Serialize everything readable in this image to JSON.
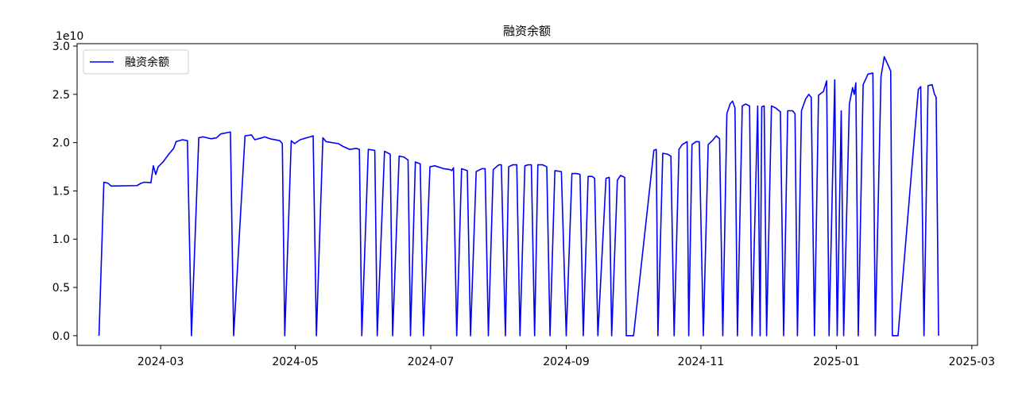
{
  "chart_data": {
    "type": "line",
    "title": "融资余额",
    "y_offset_label": "1e10",
    "x": [
      2024.091,
      2024.097,
      2024.102,
      2024.106,
      2024.138,
      2024.143,
      2024.147,
      2024.155,
      2024.158,
      2024.161,
      2024.164,
      2024.17,
      2024.177,
      2024.183,
      2024.186,
      2024.194,
      2024.2,
      2024.205,
      2024.214,
      2024.219,
      2024.229,
      2024.236,
      2024.241,
      2024.253,
      2024.257,
      2024.271,
      2024.279,
      2024.283,
      2024.292,
      2024.295,
      2024.302,
      2024.314,
      2024.317,
      2024.32,
      2024.328,
      2024.332,
      2024.339,
      2024.351,
      2024.355,
      2024.359,
      2024.367,
      2024.371,
      2024.386,
      2024.392,
      2024.4,
      2024.408,
      2024.412,
      2024.415,
      2024.423,
      2024.431,
      2024.434,
      2024.443,
      2024.45,
      2024.453,
      2024.461,
      2024.467,
      2024.472,
      2024.475,
      2024.481,
      2024.487,
      2024.491,
      2024.499,
      2024.505,
      2024.516,
      2024.524,
      2024.526,
      2024.528,
      2024.532,
      2024.538,
      2024.545,
      2024.549,
      2024.556,
      2024.563,
      2024.567,
      2024.571,
      2024.577,
      2024.581,
      2024.584,
      2024.587,
      2024.592,
      2024.596,
      2024.601,
      2024.606,
      2024.61,
      2024.616,
      2024.62,
      2024.624,
      2024.628,
      2024.632,
      2024.638,
      2024.643,
      2024.647,
      2024.653,
      2024.661,
      2024.667,
      2024.674,
      2024.68,
      2024.684,
      2024.688,
      2024.694,
      2024.699,
      2024.702,
      2024.706,
      2024.716,
      2024.72,
      2024.723,
      2024.73,
      2024.734,
      2024.739,
      2024.741,
      2024.75,
      2024.775,
      2024.778,
      2024.78,
      2024.786,
      2024.792,
      2024.796,
      2024.8,
      2024.806,
      2024.81,
      2024.816,
      2024.818,
      2024.822,
      2024.827,
      2024.831,
      2024.836,
      2024.842,
      2024.847,
      2024.852,
      2024.856,
      2024.86,
      2024.865,
      2024.869,
      2024.872,
      2024.875,
      2024.878,
      2024.884,
      2024.888,
      2024.893,
      2024.896,
      2024.903,
      2024.906,
      2024.908,
      2024.911,
      2024.914,
      2024.92,
      2024.925,
      2024.931,
      2024.935,
      2024.94,
      2024.946,
      2024.949,
      2024.952,
      2024.957,
      2024.962,
      2024.966,
      2024.969,
      2024.973,
      2024.978,
      2024.984,
      2024.988,
      2024.991,
      2024.998,
      2025.001,
      2025.006,
      2025.009,
      2025.016,
      2025.02,
      2025.022,
      2025.024,
      2025.027,
      2025.033,
      2025.039,
      2025.045,
      2025.048,
      2025.055,
      2025.059,
      2025.065,
      2025.067,
      2025.069,
      2025.076,
      2025.101,
      2025.104,
      2025.108,
      2025.113,
      2025.118,
      2025.121,
      2025.123,
      2025.126
    ],
    "series": [
      {
        "name": "融资余额",
        "color": "#0000ff",
        "values": [
          0,
          1.59,
          1.58,
          1.55,
          1.555,
          1.58,
          1.59,
          1.585,
          1.76,
          1.67,
          1.75,
          1.8,
          1.88,
          1.94,
          2.01,
          2.03,
          2.02,
          0,
          2.05,
          2.06,
          2.04,
          2.05,
          2.09,
          2.11,
          0,
          2.07,
          2.08,
          2.03,
          2.05,
          2.06,
          2.04,
          2.02,
          1.99,
          0,
          2.02,
          1.99,
          2.03,
          2.06,
          2.07,
          0,
          2.05,
          2.01,
          1.99,
          1.96,
          1.93,
          1.94,
          1.93,
          0,
          1.93,
          1.92,
          0,
          1.91,
          1.88,
          0,
          1.86,
          1.85,
          1.82,
          0,
          1.8,
          1.78,
          0,
          1.75,
          1.76,
          1.73,
          1.72,
          1.71,
          1.74,
          0,
          1.73,
          1.71,
          0,
          1.7,
          1.73,
          1.73,
          0,
          1.72,
          1.75,
          1.77,
          1.77,
          0,
          1.75,
          1.77,
          1.77,
          0,
          1.76,
          1.77,
          1.77,
          0,
          1.77,
          1.77,
          1.75,
          0,
          1.71,
          1.7,
          0,
          1.68,
          1.68,
          1.67,
          0,
          1.65,
          1.65,
          1.63,
          0,
          1.63,
          1.64,
          0,
          1.61,
          1.66,
          1.64,
          0,
          0,
          1.92,
          1.93,
          0,
          1.89,
          1.88,
          1.86,
          0,
          1.93,
          1.98,
          2.01,
          0,
          1.98,
          2.01,
          2.01,
          0,
          1.98,
          2.02,
          2.07,
          2.04,
          0,
          2.3,
          2.4,
          2.43,
          2.36,
          0,
          2.38,
          2.4,
          2.38,
          0,
          2.38,
          0,
          2.37,
          2.38,
          0,
          2.38,
          2.36,
          2.32,
          0,
          2.33,
          2.33,
          2.3,
          0,
          2.33,
          2.45,
          2.5,
          2.47,
          0,
          2.49,
          2.53,
          2.64,
          0,
          2.65,
          0,
          2.33,
          0,
          2.4,
          2.57,
          2.5,
          2.62,
          0,
          2.6,
          2.71,
          2.72,
          0,
          2.68,
          2.89,
          2.78,
          2.74,
          0,
          0,
          2.55,
          2.58,
          0,
          2.59,
          2.6,
          2.5,
          2.47,
          0
        ]
      }
    ],
    "xlim": [
      2024.064,
      2025.174
    ],
    "xticks": [
      {
        "value": 2024.167,
        "label": "2024-03"
      },
      {
        "value": 2024.333,
        "label": "2024-05"
      },
      {
        "value": 2024.5,
        "label": "2024-07"
      },
      {
        "value": 2024.667,
        "label": "2024-09"
      },
      {
        "value": 2024.833,
        "label": "2024-11"
      },
      {
        "value": 2025.0,
        "label": "2025-01"
      },
      {
        "value": 2025.167,
        "label": "2025-03"
      }
    ],
    "ylim": [
      -0.1,
      3.025
    ],
    "yticks": [
      {
        "value": 0,
        "label": "0.0"
      },
      {
        "value": 0.5,
        "label": "0.5"
      },
      {
        "value": 1,
        "label": "1.0"
      },
      {
        "value": 1.5,
        "label": "1.5"
      },
      {
        "value": 2,
        "label": "2.0"
      },
      {
        "value": 2.5,
        "label": "2.5"
      },
      {
        "value": 3,
        "label": "3.0"
      }
    ],
    "legend": "upper left",
    "grid": false
  }
}
